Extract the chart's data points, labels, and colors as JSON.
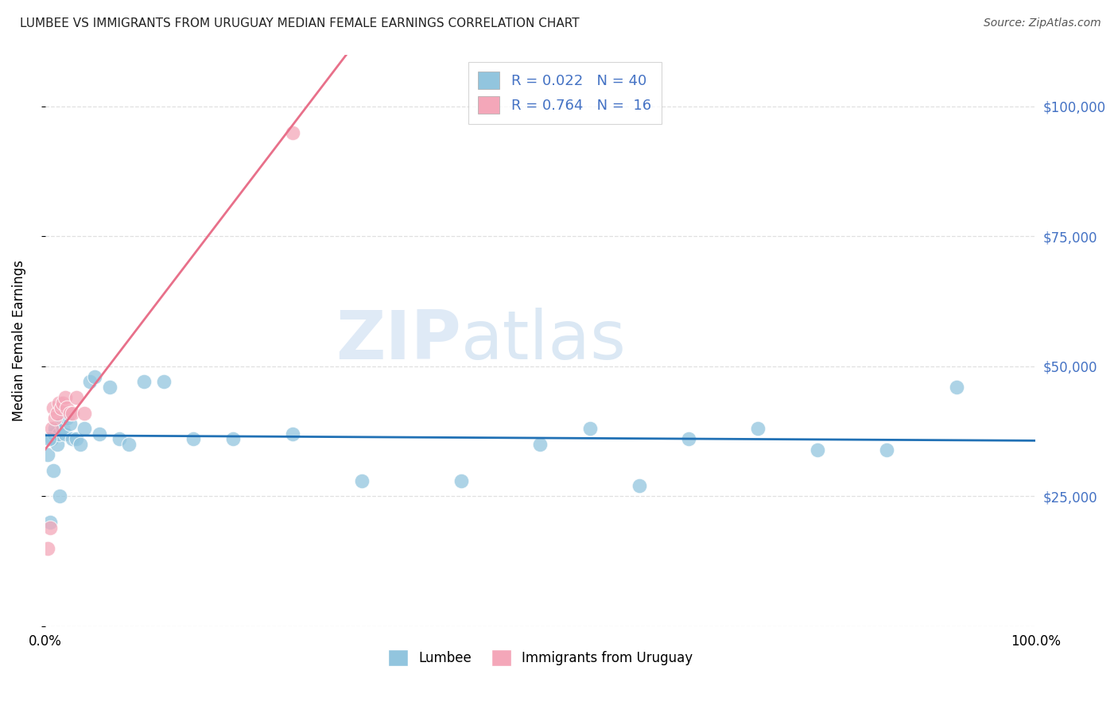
{
  "title": "LUMBEE VS IMMIGRANTS FROM URUGUAY MEDIAN FEMALE EARNINGS CORRELATION CHART",
  "source": "Source: ZipAtlas.com",
  "ylabel": "Median Female Earnings",
  "watermark_zip": "ZIP",
  "watermark_atlas": "atlas",
  "legend_blue_R": "0.022",
  "legend_blue_N": "40",
  "legend_pink_R": "0.764",
  "legend_pink_N": "16",
  "legend_label_blue": "Lumbee",
  "legend_label_pink": "Immigrants from Uruguay",
  "xlim": [
    0.0,
    1.0
  ],
  "ylim": [
    0,
    110000
  ],
  "yticks": [
    0,
    25000,
    50000,
    75000,
    100000
  ],
  "ytick_labels_right": [
    "",
    "$25,000",
    "$50,000",
    "$75,000",
    "$100,000"
  ],
  "xtick_positions": [
    0.0,
    1.0
  ],
  "xtick_labels": [
    "0.0%",
    "100.0%"
  ],
  "background_color": "#ffffff",
  "grid_color": "#e0e0e0",
  "blue_dot_color": "#92c5de",
  "pink_dot_color": "#f4a7b9",
  "blue_line_color": "#2171b5",
  "pink_line_color": "#e8708a",
  "lumbee_x": [
    0.003,
    0.005,
    0.007,
    0.009,
    0.01,
    0.012,
    0.014,
    0.016,
    0.018,
    0.02,
    0.022,
    0.025,
    0.028,
    0.032,
    0.036,
    0.04,
    0.045,
    0.05,
    0.055,
    0.065,
    0.075,
    0.085,
    0.1,
    0.12,
    0.15,
    0.19,
    0.25,
    0.32,
    0.42,
    0.5,
    0.55,
    0.6,
    0.65,
    0.72,
    0.78,
    0.85,
    0.92,
    0.004,
    0.008,
    0.015
  ],
  "lumbee_y": [
    33000,
    20000,
    36000,
    37000,
    38000,
    35000,
    37000,
    39000,
    38000,
    37000,
    40000,
    39000,
    36000,
    36000,
    35000,
    38000,
    47000,
    48000,
    37000,
    46000,
    36000,
    35000,
    47000,
    47000,
    36000,
    36000,
    37000,
    28000,
    28000,
    35000,
    38000,
    27000,
    36000,
    38000,
    34000,
    34000,
    46000,
    36000,
    30000,
    25000
  ],
  "uruguay_x": [
    0.003,
    0.005,
    0.007,
    0.008,
    0.01,
    0.012,
    0.014,
    0.016,
    0.018,
    0.02,
    0.022,
    0.025,
    0.028,
    0.032,
    0.04,
    0.25
  ],
  "uruguay_y": [
    15000,
    19000,
    38000,
    42000,
    40000,
    41000,
    43000,
    42000,
    43000,
    44000,
    42000,
    41000,
    41000,
    44000,
    41000,
    95000
  ]
}
